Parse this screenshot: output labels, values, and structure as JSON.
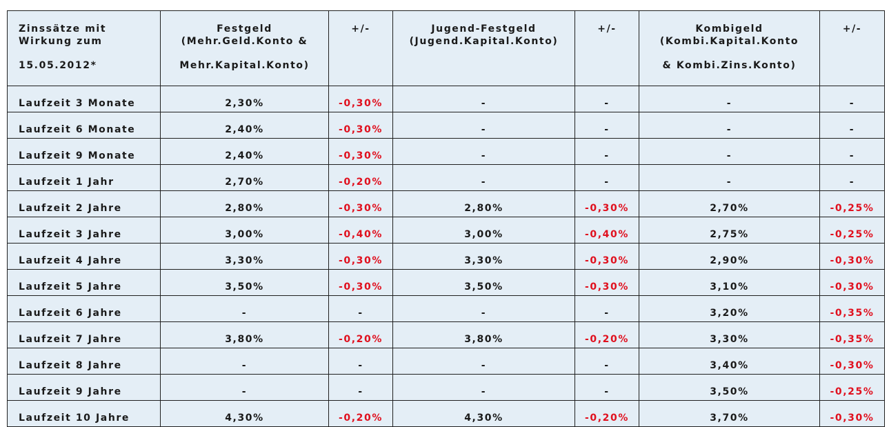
{
  "table": {
    "header": {
      "label": [
        "Zinssätze mit",
        "Wirkung zum",
        "15.05.2012*"
      ],
      "festgeld": [
        "Festgeld",
        "(Mehr.Geld.Konto &",
        "Mehr.Kapital.Konto)"
      ],
      "festgeld_diff": [
        "+/-"
      ],
      "jugend": [
        "Jugend-Festgeld",
        "(Jugend.Kapital.Konto)"
      ],
      "jugend_diff": [
        "+/-"
      ],
      "kombi": [
        "Kombigeld",
        "(Kombi.Kapital.Konto",
        "& Kombi.Zins.Konto)"
      ],
      "kombi_diff": [
        "+/-"
      ]
    },
    "rows": [
      {
        "label": "Laufzeit 3 Monate",
        "festgeld": "2,30%",
        "festgeld_diff": "-0,30%",
        "jugend": "-",
        "jugend_diff": "-",
        "kombi": "-",
        "kombi_diff": "-"
      },
      {
        "label": "Laufzeit 6 Monate",
        "festgeld": "2,40%",
        "festgeld_diff": "-0,30%",
        "jugend": "-",
        "jugend_diff": "-",
        "kombi": "-",
        "kombi_diff": "-"
      },
      {
        "label": "Laufzeit 9 Monate",
        "festgeld": "2,40%",
        "festgeld_diff": "-0,30%",
        "jugend": "-",
        "jugend_diff": "-",
        "kombi": "-",
        "kombi_diff": "-"
      },
      {
        "label": "Laufzeit 1 Jahr",
        "festgeld": "2,70%",
        "festgeld_diff": "-0,20%",
        "jugend": "-",
        "jugend_diff": "-",
        "kombi": "-",
        "kombi_diff": "-"
      },
      {
        "label": "Laufzeit 2 Jahre",
        "festgeld": "2,80%",
        "festgeld_diff": "-0,30%",
        "jugend": "2,80%",
        "jugend_diff": "-0,30%",
        "kombi": "2,70%",
        "kombi_diff": "-0,25%"
      },
      {
        "label": "Laufzeit 3 Jahre",
        "festgeld": "3,00%",
        "festgeld_diff": "-0,40%",
        "jugend": "3,00%",
        "jugend_diff": "-0,40%",
        "kombi": "2,75%",
        "kombi_diff": "-0,25%"
      },
      {
        "label": "Laufzeit 4 Jahre",
        "festgeld": "3,30%",
        "festgeld_diff": "-0,30%",
        "jugend": "3,30%",
        "jugend_diff": "-0,30%",
        "kombi": "2,90%",
        "kombi_diff": "-0,30%"
      },
      {
        "label": "Laufzeit 5 Jahre",
        "festgeld": "3,50%",
        "festgeld_diff": "-0,30%",
        "jugend": "3,50%",
        "jugend_diff": "-0,30%",
        "kombi": "3,10%",
        "kombi_diff": "-0,30%"
      },
      {
        "label": "Laufzeit 6 Jahre",
        "festgeld": "-",
        "festgeld_diff": "-",
        "jugend": "-",
        "jugend_diff": "-",
        "kombi": "3,20%",
        "kombi_diff": "-0,35%"
      },
      {
        "label": "Laufzeit 7 Jahre",
        "festgeld": "3,80%",
        "festgeld_diff": "-0,20%",
        "jugend": "3,80%",
        "jugend_diff": "-0,20%",
        "kombi": "3,30%",
        "kombi_diff": "-0,35%"
      },
      {
        "label": "Laufzeit 8 Jahre",
        "festgeld": "-",
        "festgeld_diff": "-",
        "jugend": "-",
        "jugend_diff": "-",
        "kombi": "3,40%",
        "kombi_diff": "-0,30%"
      },
      {
        "label": "Laufzeit 9 Jahre",
        "festgeld": "-",
        "festgeld_diff": "-",
        "jugend": "-",
        "jugend_diff": "-",
        "kombi": "3,50%",
        "kombi_diff": "-0,25%"
      },
      {
        "label": "Laufzeit 10 Jahre",
        "festgeld": "4,30%",
        "festgeld_diff": "-0,20%",
        "jugend": "4,30%",
        "jugend_diff": "-0,20%",
        "kombi": "3,70%",
        "kombi_diff": "-0,30%"
      }
    ]
  },
  "colors": {
    "cell_background": "#e4eef6",
    "border": "#1f1f1f",
    "text": "#1a1a1a",
    "negative": "#e0101e"
  }
}
